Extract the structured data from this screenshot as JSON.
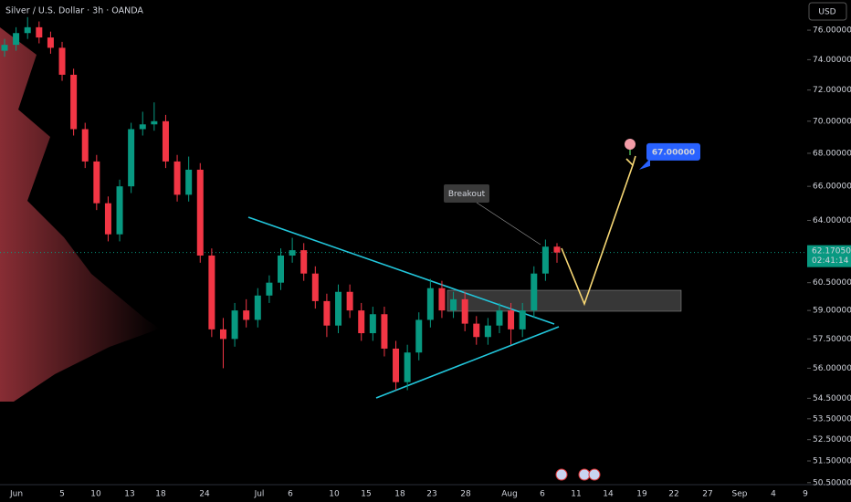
{
  "header": {
    "title": "Silver / U.S. Dollar · 3h · OANDA",
    "currency_button": "USD"
  },
  "price_axis": {
    "log_scale": true,
    "ylim": [
      50.45,
      78.1
    ],
    "ticks": [
      {
        "value": 76,
        "label": "76.00000"
      },
      {
        "value": 74,
        "label": "74.00000"
      },
      {
        "value": 72,
        "label": "72.00000"
      },
      {
        "value": 70,
        "label": "70.00000"
      },
      {
        "value": 68,
        "label": "68.00000"
      },
      {
        "value": 66,
        "label": "66.00000"
      },
      {
        "value": 64,
        "label": "64.00000"
      },
      {
        "value": 60.5,
        "label": "60.50000"
      },
      {
        "value": 59,
        "label": "59.00000"
      },
      {
        "value": 57.5,
        "label": "57.50000"
      },
      {
        "value": 56,
        "label": "56.00000"
      },
      {
        "value": 54.5,
        "label": "54.50000"
      },
      {
        "value": 53.5,
        "label": "53.50000"
      },
      {
        "value": 52.5,
        "label": "52.50000"
      },
      {
        "value": 51.5,
        "label": "51.50000"
      },
      {
        "value": 50.5,
        "label": "50.50000"
      }
    ],
    "current_price": {
      "value": 62.1705,
      "label": "62.17050"
    },
    "countdown": "02:41:14"
  },
  "time_axis": {
    "labels": [
      "Jun",
      "5",
      "10",
      "13",
      "18",
      "24",
      "Jul",
      "6",
      "10",
      "15",
      "18",
      "23",
      "28",
      "Aug",
      "6",
      "11",
      "14",
      "19",
      "22",
      "27",
      "Sep",
      "4",
      "9"
    ]
  },
  "candles": [
    [
      74.6,
      75.4,
      74.2,
      75.0
    ],
    [
      75.0,
      76.2,
      74.6,
      75.8
    ],
    [
      75.8,
      76.9,
      75.4,
      76.2
    ],
    [
      76.2,
      76.6,
      75.1,
      75.5
    ],
    [
      75.5,
      75.9,
      74.4,
      74.8
    ],
    [
      74.8,
      75.2,
      72.6,
      73.0
    ],
    [
      73.0,
      73.4,
      69.1,
      69.5
    ],
    [
      69.5,
      69.9,
      67.1,
      67.5
    ],
    [
      67.5,
      67.9,
      64.6,
      65.0
    ],
    [
      65.0,
      65.4,
      62.8,
      63.2
    ],
    [
      63.2,
      66.4,
      62.8,
      66.0
    ],
    [
      66.0,
      69.9,
      65.6,
      69.5
    ],
    [
      69.5,
      70.6,
      69.1,
      69.8
    ],
    [
      69.8,
      71.2,
      69.4,
      70.0
    ],
    [
      70.0,
      70.4,
      67.1,
      67.5
    ],
    [
      67.5,
      67.9,
      65.1,
      65.5
    ],
    [
      65.5,
      67.8,
      65.1,
      67.0
    ],
    [
      67.0,
      67.4,
      61.6,
      62.0
    ],
    [
      62.0,
      62.4,
      57.6,
      58.0
    ],
    [
      58.0,
      58.6,
      56.0,
      57.5
    ],
    [
      57.5,
      59.4,
      57.1,
      59.0
    ],
    [
      59.0,
      59.6,
      58.1,
      58.5
    ],
    [
      58.5,
      60.2,
      58.1,
      59.8
    ],
    [
      59.8,
      60.9,
      59.4,
      60.5
    ],
    [
      60.5,
      62.4,
      60.1,
      62.0
    ],
    [
      62.0,
      63.0,
      61.6,
      62.3
    ],
    [
      62.3,
      62.7,
      60.6,
      61.0
    ],
    [
      61.0,
      61.4,
      59.1,
      59.5
    ],
    [
      59.5,
      59.9,
      57.6,
      58.2
    ],
    [
      58.2,
      60.4,
      57.8,
      60.0
    ],
    [
      60.0,
      60.4,
      58.6,
      59.0
    ],
    [
      59.0,
      59.4,
      57.4,
      57.8
    ],
    [
      57.8,
      59.2,
      57.4,
      58.8
    ],
    [
      58.8,
      59.2,
      56.6,
      57.0
    ],
    [
      57.0,
      57.4,
      54.9,
      55.3
    ],
    [
      55.3,
      57.2,
      54.9,
      56.8
    ],
    [
      56.8,
      58.9,
      56.4,
      58.5
    ],
    [
      58.5,
      60.7,
      58.1,
      60.2
    ],
    [
      60.2,
      60.6,
      58.6,
      59.0
    ],
    [
      59.0,
      60.0,
      58.6,
      59.6
    ],
    [
      59.6,
      60.0,
      57.9,
      58.3
    ],
    [
      58.3,
      58.7,
      57.2,
      57.6
    ],
    [
      57.6,
      58.6,
      57.2,
      58.2
    ],
    [
      58.2,
      59.4,
      57.8,
      59.0
    ],
    [
      59.0,
      59.4,
      57.2,
      58.0
    ],
    [
      58.0,
      59.4,
      57.6,
      59.0
    ],
    [
      59.0,
      61.4,
      58.6,
      61.0
    ],
    [
      61.0,
      62.9,
      60.6,
      62.5
    ],
    [
      62.5,
      62.7,
      61.6,
      62.17
    ]
  ],
  "annotations": {
    "breakout": "Breakout",
    "target": {
      "value": 67,
      "label": "67.00000"
    }
  }
}
